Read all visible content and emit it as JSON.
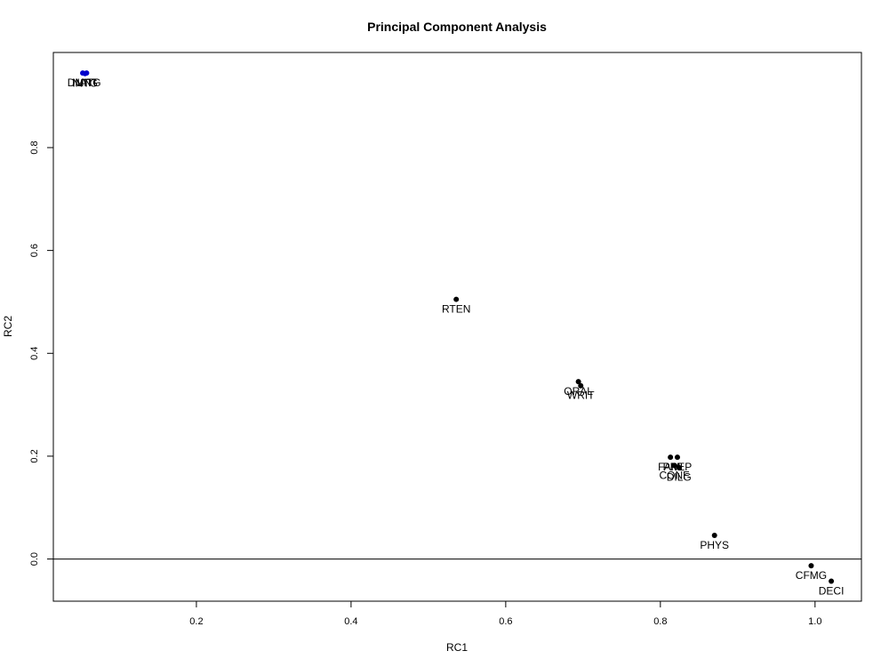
{
  "chart_data": {
    "type": "scatter",
    "title": "Principal Component Analysis",
    "xlabel": "RC1",
    "ylabel": "RC2",
    "xlim": [
      0.015,
      1.06
    ],
    "ylim": [
      -0.082,
      0.985
    ],
    "x_ticks": [
      {
        "value": 0.2,
        "label": "0.2"
      },
      {
        "value": 0.4,
        "label": "0.4"
      },
      {
        "value": 0.6,
        "label": "0.6"
      },
      {
        "value": 0.8,
        "label": "0.8"
      },
      {
        "value": 1.0,
        "label": "1.0"
      }
    ],
    "y_ticks": [
      {
        "value": 0.0,
        "label": "0.0"
      },
      {
        "value": 0.2,
        "label": "0.2"
      },
      {
        "value": 0.4,
        "label": "0.4"
      },
      {
        "value": 0.6,
        "label": "0.6"
      },
      {
        "value": 0.8,
        "label": "0.8"
      }
    ],
    "reference_lines": [
      {
        "axis": "y",
        "value": 0.0,
        "color": "#000000"
      }
    ],
    "grid": false,
    "points": [
      {
        "label": "DMNT",
        "x": 0.053,
        "y": 0.945,
        "color": "#0000cc"
      },
      {
        "label": "NATG",
        "x": 0.058,
        "y": 0.945,
        "color": "#0000cc"
      },
      {
        "label": "INTG",
        "x": 0.056,
        "y": 0.944,
        "color": "#0000cc"
      },
      {
        "label": "RTEN",
        "x": 0.536,
        "y": 0.505,
        "color": "#000000"
      },
      {
        "label": "ORAL",
        "x": 0.694,
        "y": 0.345,
        "color": "#000000"
      },
      {
        "label": "WRIT",
        "x": 0.697,
        "y": 0.337,
        "color": "#000000"
      },
      {
        "label": "FAMI",
        "x": 0.813,
        "y": 0.198,
        "color": "#000000"
      },
      {
        "label": "PREP",
        "x": 0.822,
        "y": 0.198,
        "color": "#000000"
      },
      {
        "label": "CONF",
        "x": 0.818,
        "y": 0.182,
        "color": "#000000"
      },
      {
        "label": "DILG",
        "x": 0.824,
        "y": 0.178,
        "color": "#000000"
      },
      {
        "label": "PHYS",
        "x": 0.87,
        "y": 0.046,
        "color": "#000000"
      },
      {
        "label": "CFMG",
        "x": 0.995,
        "y": -0.013,
        "color": "#000000"
      },
      {
        "label": "DECI",
        "x": 1.021,
        "y": -0.043,
        "color": "#000000"
      }
    ]
  }
}
